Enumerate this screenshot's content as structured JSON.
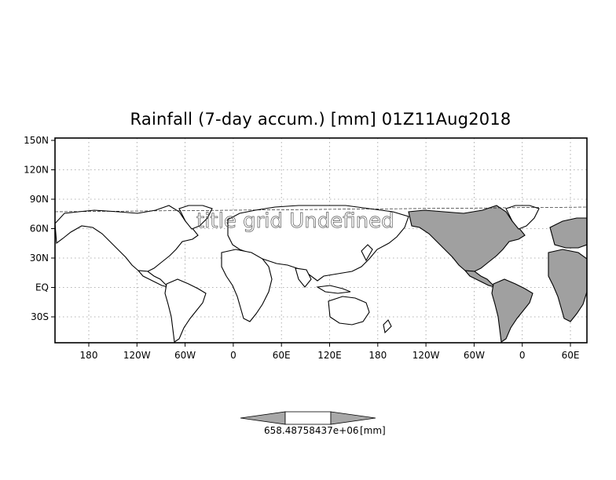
{
  "title": "Rainfall (7-day accum.) [mm] 01Z11Aug2018",
  "watermark": "title  grid Undefined",
  "y_axis": {
    "ticks": [
      "150N",
      "120N",
      "90N",
      "60N",
      "30N",
      "EQ",
      "30S"
    ]
  },
  "x_axis": {
    "ticks": [
      "180",
      "120W",
      "60W",
      "0",
      "60E",
      "120E",
      "180",
      "120W",
      "60W",
      "0",
      "60E"
    ]
  },
  "colorbar": {
    "label": "658.48758437e+06",
    "unit": "[mm]"
  },
  "colors": {
    "frame": "#000000",
    "grid": "#9a9a9a",
    "land_fill": "#a0a0a0",
    "coast": "#000000"
  }
}
